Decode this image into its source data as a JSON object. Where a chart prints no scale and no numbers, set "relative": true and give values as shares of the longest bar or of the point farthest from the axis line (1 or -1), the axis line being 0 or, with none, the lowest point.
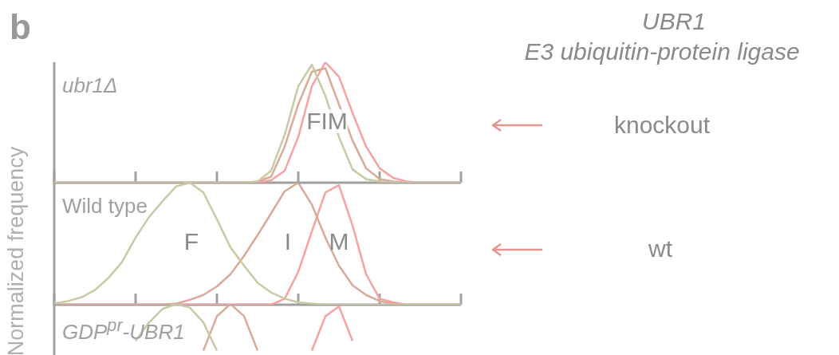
{
  "chart_data": [
    {
      "type": "line",
      "title": "ubr1Δ",
      "relative": true,
      "marker": "none",
      "legend": false,
      "categories": [
        null,
        null,
        null,
        null,
        null,
        null,
        null,
        null,
        null,
        null,
        null,
        null,
        null,
        null,
        null,
        null,
        null,
        null,
        null,
        null,
        null,
        null,
        null,
        null,
        null,
        null,
        null,
        null,
        null,
        null,
        null
      ],
      "series": [
        {
          "color": "#c9c9a6",
          "values": [
            0,
            0,
            0,
            0,
            0,
            0,
            0,
            0,
            0,
            0,
            0,
            0,
            0,
            0,
            0,
            0.01,
            0.1,
            0.4,
            0.8,
            0.98,
            0.72,
            0.38,
            0.11,
            0.03,
            0.01,
            0,
            0,
            0,
            0,
            0,
            0
          ]
        },
        {
          "color": "#d9aa98",
          "values": [
            0,
            0,
            0,
            0,
            0,
            0,
            0,
            0,
            0,
            0,
            0,
            0,
            0,
            0,
            0,
            0.01,
            0.05,
            0.3,
            0.65,
            0.92,
            0.95,
            0.65,
            0.35,
            0.12,
            0.03,
            0.01,
            0,
            0,
            0,
            0,
            0
          ]
        },
        {
          "color": "#f7a1a1",
          "values": [
            0,
            0,
            0,
            0,
            0,
            0,
            0,
            0,
            0,
            0,
            0,
            0,
            0,
            0,
            0,
            0,
            0.02,
            0.1,
            0.38,
            0.8,
            1,
            0.88,
            0.58,
            0.3,
            0.12,
            0.04,
            0.01,
            0,
            0,
            0,
            0
          ]
        }
      ],
      "annotations": [
        "b",
        "UBR1",
        "E3 ubiquitin-protein ligase",
        "knockout",
        "FIM"
      ]
    },
    {
      "type": "line",
      "title": "Wild type",
      "ylabel": "Normalized frequency",
      "relative": true,
      "marker": "none",
      "legend": false,
      "categories": [
        null,
        null,
        null,
        null,
        null,
        null,
        null,
        null,
        null,
        null,
        null,
        null,
        null,
        null,
        null,
        null,
        null,
        null,
        null,
        null,
        null,
        null,
        null,
        null,
        null,
        null,
        null,
        null,
        null,
        null,
        null
      ],
      "series": [
        {
          "color": "#c9c9a6",
          "values": [
            0.01,
            0.03,
            0.06,
            0.12,
            0.22,
            0.35,
            0.55,
            0.72,
            0.85,
            0.97,
            1,
            0.92,
            0.7,
            0.47,
            0.32,
            0.18,
            0.1,
            0.05,
            0.02,
            0.01,
            0,
            0,
            0,
            0,
            0,
            0,
            0,
            0,
            0,
            0,
            0
          ]
        },
        {
          "color": "#d9aa98",
          "values": [
            0,
            0,
            0,
            0,
            0,
            0,
            0,
            0,
            0,
            0.01,
            0.04,
            0.08,
            0.15,
            0.25,
            0.4,
            0.57,
            0.75,
            0.93,
            1,
            0.82,
            0.55,
            0.32,
            0.16,
            0.08,
            0.03,
            0.01,
            0,
            0,
            0,
            0,
            0
          ]
        },
        {
          "color": "#f7a1a1",
          "values": [
            0,
            0,
            0,
            0,
            0,
            0,
            0,
            0,
            0,
            0,
            0,
            0,
            0,
            0,
            0,
            0,
            0,
            0.05,
            0.27,
            0.6,
            0.92,
            0.98,
            0.65,
            0.25,
            0.05,
            0.02,
            0,
            0,
            0,
            0,
            0
          ]
        }
      ],
      "annotations": [
        "wt",
        "F",
        "I",
        "M"
      ]
    },
    {
      "type": "line",
      "title": "GDP$^{pr}$-UBR1",
      "relative": true,
      "marker": "none",
      "legend": false,
      "categories": [
        null,
        null,
        null,
        null,
        null,
        null,
        null,
        null,
        null,
        null,
        null,
        null,
        null,
        null,
        null,
        null,
        null,
        null,
        null,
        null,
        null,
        null,
        null,
        null,
        null,
        null,
        null,
        null,
        null,
        null,
        null
      ],
      "series": [
        {
          "color": "#c9c9a6",
          "values": [
            null,
            null,
            null,
            null,
            null,
            null,
            0.7,
            0.85,
            0.96,
            1,
            0.97,
            0.85,
            0.62,
            null,
            null,
            null,
            null,
            null,
            null,
            null,
            null,
            null,
            null,
            null,
            null,
            null,
            null,
            null,
            null,
            null,
            null
          ]
        },
        {
          "color": "#d9aa98",
          "values": [
            null,
            null,
            null,
            null,
            null,
            null,
            null,
            null,
            null,
            null,
            null,
            0.62,
            0.9,
            1,
            0.9,
            0.62,
            null,
            null,
            null,
            null,
            null,
            null,
            null,
            null,
            null,
            null,
            null,
            null,
            null,
            null,
            null
          ]
        },
        {
          "color": "#f7a1a1",
          "values": [
            null,
            null,
            null,
            null,
            null,
            null,
            null,
            null,
            null,
            null,
            null,
            null,
            null,
            null,
            null,
            null,
            null,
            null,
            null,
            0.62,
            0.9,
            0.98,
            0.7,
            null,
            null,
            null,
            null,
            null,
            null,
            null,
            null
          ]
        }
      ]
    }
  ]
}
